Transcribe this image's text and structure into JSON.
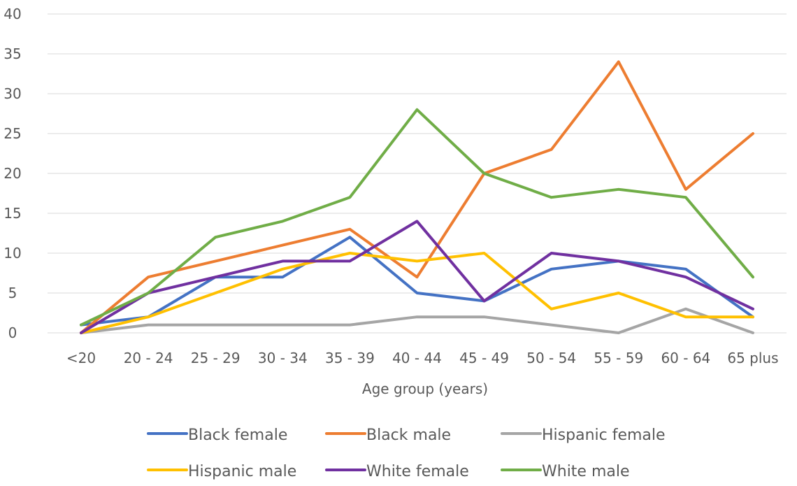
{
  "chart_data": {
    "type": "line",
    "title": "",
    "xlabel": "Age group (years)",
    "ylabel": "",
    "categories": [
      "<20",
      "20 - 24",
      "25 - 29",
      "30 - 34",
      "35 - 39",
      "40 - 44",
      "45 - 49",
      "50 - 54",
      "55 - 59",
      "60 - 64",
      "65 plus"
    ],
    "ylim": [
      0,
      40
    ],
    "yticks": [
      "0",
      "5",
      "10",
      "15",
      "20",
      "25",
      "30",
      "35",
      "40"
    ],
    "grid": true,
    "legend": "bottom",
    "series": [
      {
        "name": "Black female",
        "color": "#4472C4",
        "values": [
          1,
          2,
          7,
          7,
          12,
          5,
          4,
          8,
          9,
          8,
          2
        ]
      },
      {
        "name": "Black male",
        "color": "#ED7D31",
        "values": [
          0,
          7,
          9,
          11,
          13,
          7,
          20,
          23,
          34,
          18,
          25
        ]
      },
      {
        "name": "Hispanic female",
        "color": "#A5A5A5",
        "values": [
          0,
          1,
          1,
          1,
          1,
          2,
          2,
          1,
          0,
          3,
          0
        ]
      },
      {
        "name": "Hispanic male",
        "color": "#FFC000",
        "values": [
          0,
          2,
          5,
          8,
          10,
          9,
          10,
          3,
          5,
          2,
          2
        ]
      },
      {
        "name": "White female",
        "color": "#7030A0",
        "values": [
          0,
          5,
          7,
          9,
          9,
          14,
          4,
          10,
          9,
          7,
          3
        ]
      },
      {
        "name": "White male",
        "color": "#70AD47",
        "values": [
          1,
          5,
          12,
          14,
          17,
          28,
          20,
          17,
          18,
          17,
          7
        ]
      }
    ]
  }
}
